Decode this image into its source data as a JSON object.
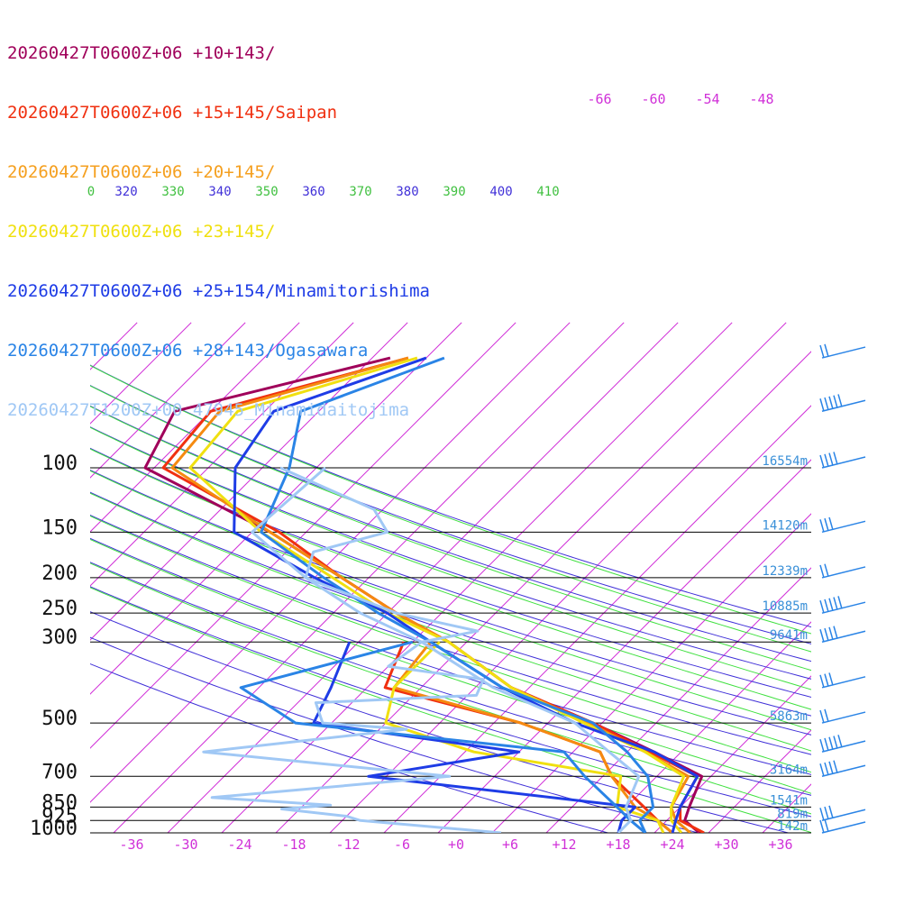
{
  "chart_data": {
    "type": "line",
    "title": "",
    "xlabel": "",
    "ylabel": "",
    "pressure_ticks": [
      {
        "p": 100,
        "label": "100",
        "height": "16554m"
      },
      {
        "p": 150,
        "label": "150",
        "height": "14120m"
      },
      {
        "p": 200,
        "label": "200",
        "height": "12339m"
      },
      {
        "p": 250,
        "label": "250",
        "height": "10885m"
      },
      {
        "p": 300,
        "label": "300",
        "height": "9641m"
      },
      {
        "p": 500,
        "label": "500",
        "height": "5863m"
      },
      {
        "p": 700,
        "label": "700",
        "height": "3164m"
      },
      {
        "p": 850,
        "label": "850",
        "height": "1541m"
      },
      {
        "p": 925,
        "label": "925",
        "height": "819m"
      },
      {
        "p": 1000,
        "label": "1000",
        "height": "142m"
      }
    ],
    "temperature_ticks": [
      "-36",
      "-30",
      "-24",
      "-18",
      "-12",
      "-6",
      "+0",
      "+6",
      "+12",
      "+18",
      "+24",
      "+30",
      "+36"
    ],
    "upper_temperature_ticks": [
      "-66",
      "-60",
      "-54",
      "-48"
    ],
    "theta_labels": [
      "0",
      "320",
      "330",
      "340",
      "350",
      "360",
      "370",
      "380",
      "390",
      "400",
      "410"
    ],
    "series": [
      {
        "name": "20260427T0600Z+06 +10+143/",
        "color": "#a0005a",
        "temp": [
          [
            1000,
            27
          ],
          [
            925,
            24
          ],
          [
            850,
            23
          ],
          [
            700,
            21
          ],
          [
            600,
            13
          ],
          [
            500,
            3
          ],
          [
            400,
            -10
          ],
          [
            300,
            -22
          ],
          [
            250,
            -31
          ],
          [
            200,
            -41
          ],
          [
            150,
            -54
          ],
          [
            100,
            -75
          ],
          [
            70,
            -78
          ],
          [
            50,
            -60
          ]
        ]
      },
      {
        "name": "20260427T0600Z+06 +15+145/Saipan",
        "color": "#f03010",
        "temp": [
          [
            1000,
            27.5
          ],
          [
            925,
            23.5
          ],
          [
            850,
            22
          ],
          [
            700,
            20.5
          ],
          [
            600,
            12.5
          ],
          [
            500,
            3
          ],
          [
            400,
            -10
          ],
          [
            300,
            -22
          ],
          [
            250,
            -31
          ],
          [
            200,
            -41
          ],
          [
            150,
            -53
          ],
          [
            100,
            -73
          ],
          [
            70,
            -74
          ],
          [
            50,
            -58
          ]
        ],
        "dew": [
          [
            1000,
            24
          ],
          [
            925,
            21
          ],
          [
            850,
            18
          ],
          [
            700,
            11
          ],
          [
            600,
            7
          ],
          [
            500,
            -5
          ],
          [
            400,
            -24
          ],
          [
            300,
            -27
          ]
        ]
      },
      {
        "name": "20260427T0600Z+06 +20+145/",
        "color": "#f58a10",
        "temp": [
          [
            1000,
            26
          ],
          [
            925,
            23
          ],
          [
            850,
            21
          ],
          [
            700,
            19.5
          ],
          [
            600,
            12
          ],
          [
            500,
            2.5
          ],
          [
            400,
            -10
          ],
          [
            300,
            -22
          ],
          [
            250,
            -31
          ],
          [
            200,
            -41
          ],
          [
            150,
            -54
          ],
          [
            100,
            -72
          ],
          [
            70,
            -73
          ],
          [
            50,
            -58
          ]
        ],
        "dew": [
          [
            1000,
            24
          ],
          [
            925,
            21
          ],
          [
            850,
            17
          ],
          [
            700,
            11
          ],
          [
            600,
            7
          ],
          [
            500,
            -5
          ],
          [
            400,
            -23
          ],
          [
            300,
            -24
          ]
        ]
      },
      {
        "name": "20260427T0600Z+06 +23+145/",
        "color": "#f0e010",
        "temp": [
          [
            1000,
            25
          ],
          [
            925,
            22.5
          ],
          [
            850,
            21
          ],
          [
            700,
            19
          ],
          [
            600,
            12
          ],
          [
            500,
            2
          ],
          [
            400,
            -10
          ],
          [
            300,
            -22
          ],
          [
            250,
            -32
          ],
          [
            200,
            -42
          ],
          [
            150,
            -55
          ],
          [
            100,
            -70
          ],
          [
            70,
            -71
          ],
          [
            50,
            -57
          ]
        ],
        "dew": [
          [
            1000,
            23
          ],
          [
            925,
            21
          ],
          [
            850,
            15
          ],
          [
            700,
            12
          ],
          [
            600,
            -7
          ],
          [
            500,
            -20
          ],
          [
            400,
            -23
          ],
          [
            300,
            -23
          ]
        ]
      },
      {
        "name": "20260427T0600Z+06 +25+154/Minamitorishima",
        "color": "#1e3ce6",
        "temp": [
          [
            1000,
            24
          ],
          [
            925,
            23
          ],
          [
            850,
            22
          ],
          [
            700,
            20.5
          ],
          [
            600,
            13
          ],
          [
            500,
            1
          ],
          [
            400,
            -11
          ],
          [
            300,
            -24
          ],
          [
            250,
            -32
          ],
          [
            200,
            -44
          ],
          [
            150,
            -58
          ],
          [
            100,
            -65
          ],
          [
            70,
            -67
          ],
          [
            50,
            -56
          ]
        ],
        "dew": [
          [
            1000,
            18
          ],
          [
            925,
            17
          ],
          [
            850,
            17
          ],
          [
            700,
            -16
          ],
          [
            600,
            -2
          ],
          [
            500,
            -28
          ],
          [
            400,
            -30
          ],
          [
            300,
            -33
          ]
        ]
      },
      {
        "name": "20260427T0600Z+06 +28+143/Ogasawara",
        "color": "#2a84e6",
        "temp": [
          [
            1000,
            21
          ],
          [
            925,
            19
          ],
          [
            850,
            19
          ],
          [
            700,
            15
          ],
          [
            600,
            10
          ],
          [
            500,
            3
          ],
          [
            400,
            -11
          ],
          [
            300,
            -24
          ],
          [
            250,
            -33
          ],
          [
            200,
            -43
          ],
          [
            150,
            -55
          ],
          [
            100,
            -59
          ],
          [
            70,
            -64
          ],
          [
            50,
            -54
          ]
        ],
        "dew": [
          [
            1000,
            21
          ],
          [
            925,
            18
          ],
          [
            850,
            15
          ],
          [
            700,
            8
          ],
          [
            600,
            3
          ],
          [
            500,
            -30
          ],
          [
            400,
            -40
          ],
          [
            300,
            -26
          ]
        ]
      },
      {
        "name": "20260427T1200Z+00 47945_Minamidaitojima",
        "color": "#a0c8f5",
        "temp": [
          [
            1000,
            18
          ],
          [
            925,
            18
          ],
          [
            850,
            16
          ],
          [
            700,
            14
          ],
          [
            600,
            8
          ],
          [
            500,
            1
          ],
          [
            400,
            -12
          ],
          [
            300,
            -25
          ],
          [
            250,
            -35
          ],
          [
            200,
            -45
          ],
          [
            150,
            -56
          ],
          [
            100,
            -55
          ]
        ],
        "dew": [
          [
            1000,
            5
          ],
          [
            925,
            -12
          ],
          [
            900,
            -14
          ],
          [
            860,
            -22
          ],
          [
            840,
            -17
          ],
          [
            800,
            -31
          ],
          [
            700,
            -7
          ],
          [
            600,
            -37
          ],
          [
            520,
            -17
          ],
          [
            500,
            -27
          ],
          [
            440,
            -30
          ],
          [
            420,
            -13
          ],
          [
            380,
            -14
          ],
          [
            350,
            -26
          ],
          [
            300,
            -25
          ],
          [
            280,
            -20
          ],
          [
            250,
            -31
          ],
          [
            200,
            -45
          ],
          [
            170,
            -47
          ],
          [
            150,
            -41
          ],
          [
            130,
            -45
          ],
          [
            100,
            -60
          ]
        ]
      }
    ],
    "wind_levels": [
      1000,
      925,
      700,
      600,
      500,
      400,
      300,
      250,
      200,
      150,
      100,
      70,
      50
    ],
    "ylim": [
      1000,
      100
    ],
    "grid": true,
    "legend": "top-left"
  }
}
